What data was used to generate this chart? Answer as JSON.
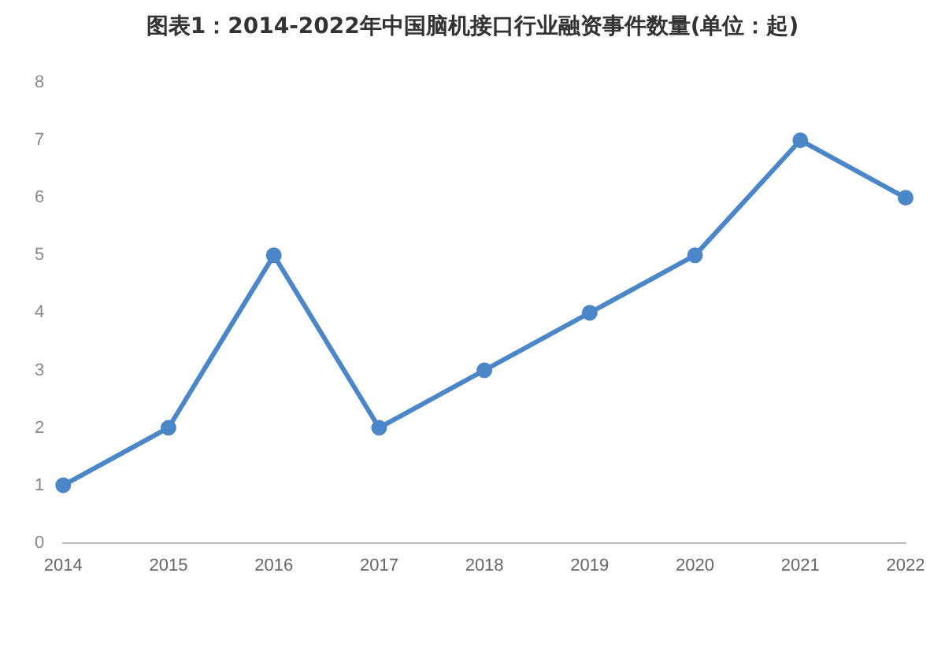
{
  "chart_data": {
    "type": "line",
    "title": "图表1：2014-2022年中国脑机接口行业融资事件数量(单位：起)",
    "categories": [
      "2014",
      "2015",
      "2016",
      "2017",
      "2018",
      "2019",
      "2020",
      "2021",
      "2022"
    ],
    "series": [
      {
        "color": "#4a86c8",
        "values": [
          1,
          2,
          5,
          2,
          3,
          4,
          5,
          7,
          6
        ]
      }
    ],
    "ylim": [
      0,
      8
    ],
    "yticks": [
      0,
      1,
      2,
      3,
      4,
      5,
      6,
      7,
      8
    ],
    "grid": false,
    "legend": false,
    "marker": "circle",
    "line_style": "solid"
  }
}
